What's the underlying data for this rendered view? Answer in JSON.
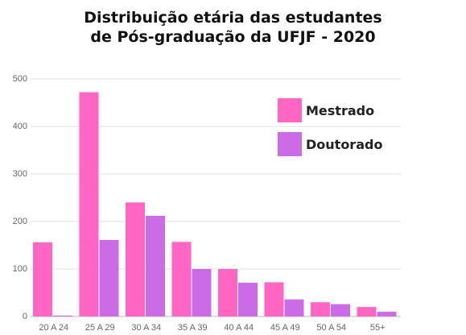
{
  "chart_data": {
    "type": "bar",
    "title_lines": [
      "Distribuição etária das estudantes",
      "de Pós-graduação da UFJF - 2020"
    ],
    "xlabel": "",
    "ylabel": "",
    "categories": [
      "20 A 24",
      "25 A 29",
      "30 A 34",
      "35 A 39",
      "40 A 44",
      "45 A 49",
      "50 A 54",
      "55+"
    ],
    "series": [
      {
        "name": "Mestrado",
        "color": "#ff66c4",
        "values": [
          156,
          472,
          240,
          157,
          100,
          72,
          30,
          20
        ]
      },
      {
        "name": "Doutorado",
        "color": "#cb6ce6",
        "values": [
          2,
          161,
          212,
          100,
          71,
          36,
          26,
          10
        ]
      }
    ],
    "ylim": [
      0,
      500
    ],
    "yticks": [
      0,
      100,
      200,
      300,
      400,
      500
    ],
    "grid": true,
    "legend": "top-right"
  }
}
